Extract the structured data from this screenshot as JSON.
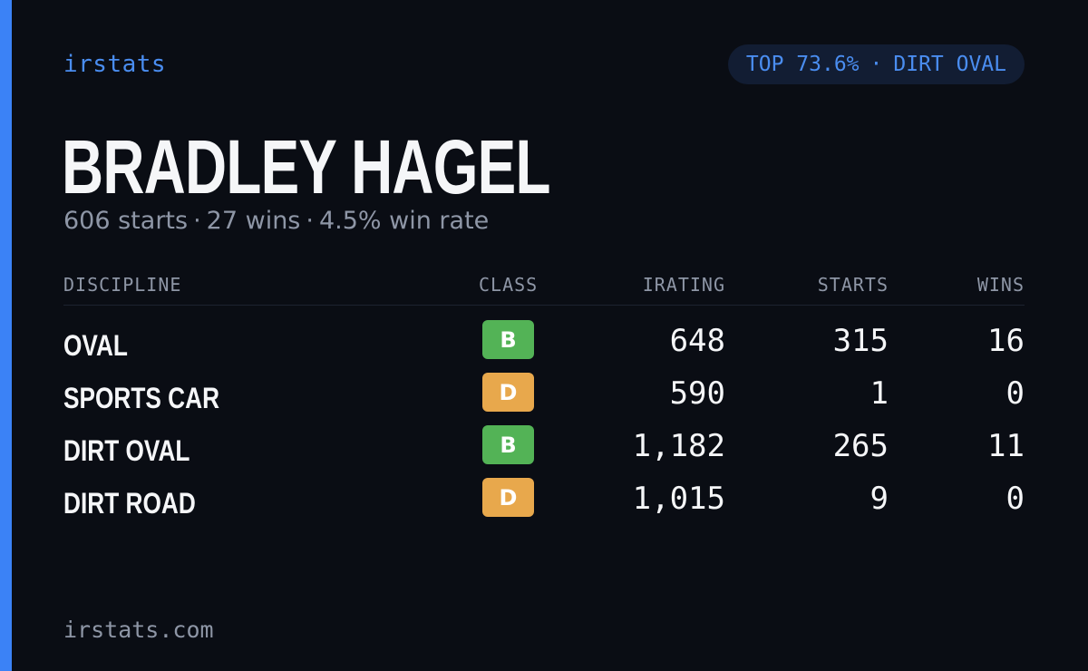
{
  "brand": "irstats",
  "badge": {
    "left": "TOP 73.6%",
    "separator": "·",
    "right": "DIRT OVAL"
  },
  "driver": {
    "name": "BRADLEY HAGEL",
    "starts_text": "606 starts",
    "wins_text": "27 wins",
    "win_rate_text": "4.5% win rate",
    "separator": "·"
  },
  "table": {
    "headers": {
      "discipline": "DISCIPLINE",
      "class": "CLASS",
      "irating": "IRATING",
      "starts": "STARTS",
      "wins": "WINS"
    },
    "rows": [
      {
        "discipline": "OVAL",
        "class": "B",
        "irating": "648",
        "starts": "315",
        "wins": "16"
      },
      {
        "discipline": "SPORTS CAR",
        "class": "D",
        "irating": "590",
        "starts": "1",
        "wins": "0"
      },
      {
        "discipline": "DIRT OVAL",
        "class": "B",
        "irating": "1,182",
        "starts": "265",
        "wins": "11"
      },
      {
        "discipline": "DIRT ROAD",
        "class": "D",
        "irating": "1,015",
        "starts": "9",
        "wins": "0"
      }
    ]
  },
  "colors": {
    "accent": "#3b82f6",
    "class_b": "#53b356",
    "class_d": "#e8a84c",
    "background": "#0a0d14"
  },
  "footer": "irstats.com"
}
